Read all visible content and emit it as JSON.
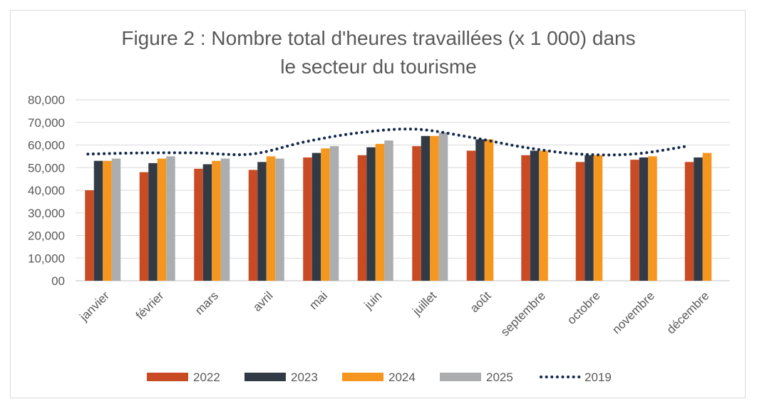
{
  "chart_data": {
    "type": "bar",
    "title_lines": [
      "Figure 2 : Nombre total d'heures travaillées (x 1 000) dans",
      "le secteur du tourisme"
    ],
    "categories": [
      "janvier",
      "février",
      "mars",
      "avril",
      "mai",
      "juin",
      "juillet",
      "août",
      "septembre",
      "octobre",
      "novembre",
      "décembre"
    ],
    "y_ticks": [
      "00",
      "10,000",
      "20,000",
      "30,000",
      "40,000",
      "50,000",
      "60,000",
      "70,000",
      "80,000"
    ],
    "ylim": [
      0,
      80000
    ],
    "grid": true,
    "legend_position": "bottom",
    "series": [
      {
        "name": "2022",
        "color": "#c84b23",
        "values": [
          40000,
          48000,
          49500,
          49000,
          54500,
          55500,
          59500,
          57500,
          55500,
          52500,
          53500,
          52500
        ]
      },
      {
        "name": "2023",
        "color": "#323b45",
        "values": [
          53000,
          52000,
          51500,
          52500,
          56500,
          59000,
          64000,
          62500,
          57500,
          55500,
          54500,
          54500
        ]
      },
      {
        "name": "2024",
        "color": "#f5971f",
        "values": [
          53000,
          54000,
          53000,
          55000,
          58500,
          60500,
          64000,
          62500,
          57500,
          55500,
          55000,
          56500
        ]
      },
      {
        "name": "2025",
        "color": "#abadaf",
        "values": [
          54000,
          55000,
          54000,
          54000,
          59500,
          62000,
          65500,
          null,
          null,
          null,
          null,
          null
        ]
      }
    ],
    "line_series": {
      "name": "2019",
      "color": "#13294b",
      "style": "dotted",
      "values": [
        56000,
        56500,
        56500,
        56000,
        61500,
        65500,
        67000,
        63500,
        59000,
        56000,
        56000,
        59500
      ]
    }
  }
}
